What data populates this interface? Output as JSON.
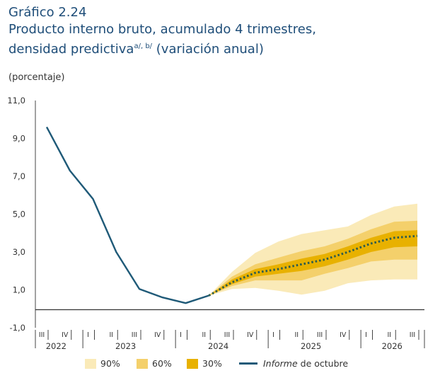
{
  "header": {
    "number": "Gráfico 2.24",
    "title_line1": "Producto interno bruto, acumulado 4 trimestres,",
    "title_line2": "densidad predictiva",
    "title_sup": "a/, b/",
    "title_line2_end": " (variación anual)"
  },
  "unit_label": "(porcentaje)",
  "chart_data": {
    "type": "area",
    "ylim": [
      -1,
      11
    ],
    "yticks": [
      "11,0",
      "9,0",
      "7,0",
      "5,0",
      "3,0",
      "1,0",
      "-1,0"
    ],
    "quarters": [
      "III",
      "IV",
      "I",
      "II",
      "III",
      "IV",
      "I",
      "II",
      "III",
      "IV",
      "I",
      "II",
      "III",
      "IV",
      "I",
      "II",
      "III"
    ],
    "years": [
      "2022",
      "2023",
      "2024",
      "2025",
      "2026"
    ],
    "history": {
      "name": "Informe de octubre",
      "x": [
        "2022-III",
        "2022-IV",
        "2023-I",
        "2023-II",
        "2023-III",
        "2023-IV",
        "2024-I",
        "2024-II"
      ],
      "values": [
        9.6,
        7.3,
        5.8,
        3.0,
        1.05,
        0.6,
        0.3,
        0.7
      ]
    },
    "forecast": {
      "x": [
        "2024-II",
        "2024-III",
        "2024-IV",
        "2025-I",
        "2025-II",
        "2025-III",
        "2025-IV",
        "2026-I",
        "2026-II",
        "2026-III"
      ],
      "median": [
        0.7,
        1.4,
        1.9,
        2.1,
        2.35,
        2.6,
        3.0,
        3.45,
        3.75,
        3.85
      ],
      "band90_lo": [
        0.7,
        1.05,
        1.1,
        0.95,
        0.75,
        0.95,
        1.35,
        1.5,
        1.55,
        1.55
      ],
      "band90_hi": [
        0.7,
        1.95,
        2.95,
        3.55,
        3.95,
        4.15,
        4.35,
        4.95,
        5.4,
        5.55
      ],
      "band60_lo": [
        0.7,
        1.2,
        1.5,
        1.5,
        1.5,
        1.85,
        2.15,
        2.5,
        2.6,
        2.6
      ],
      "band60_hi": [
        0.7,
        1.7,
        2.35,
        2.7,
        3.05,
        3.3,
        3.7,
        4.2,
        4.6,
        4.65
      ],
      "band30_lo": [
        0.7,
        1.3,
        1.7,
        1.85,
        2.0,
        2.25,
        2.6,
        3.0,
        3.25,
        3.3
      ],
      "band30_hi": [
        0.7,
        1.55,
        2.1,
        2.35,
        2.65,
        2.9,
        3.3,
        3.75,
        4.1,
        4.15
      ]
    },
    "legend": [
      {
        "label": "90%",
        "color": "#faeab8"
      },
      {
        "label": "60%",
        "color": "#f4d06b"
      },
      {
        "label": "30%",
        "color": "#e8b100"
      },
      {
        "label_italic": "Informe",
        "label_rest": " de octubre",
        "color": "#1f5a78"
      }
    ]
  }
}
